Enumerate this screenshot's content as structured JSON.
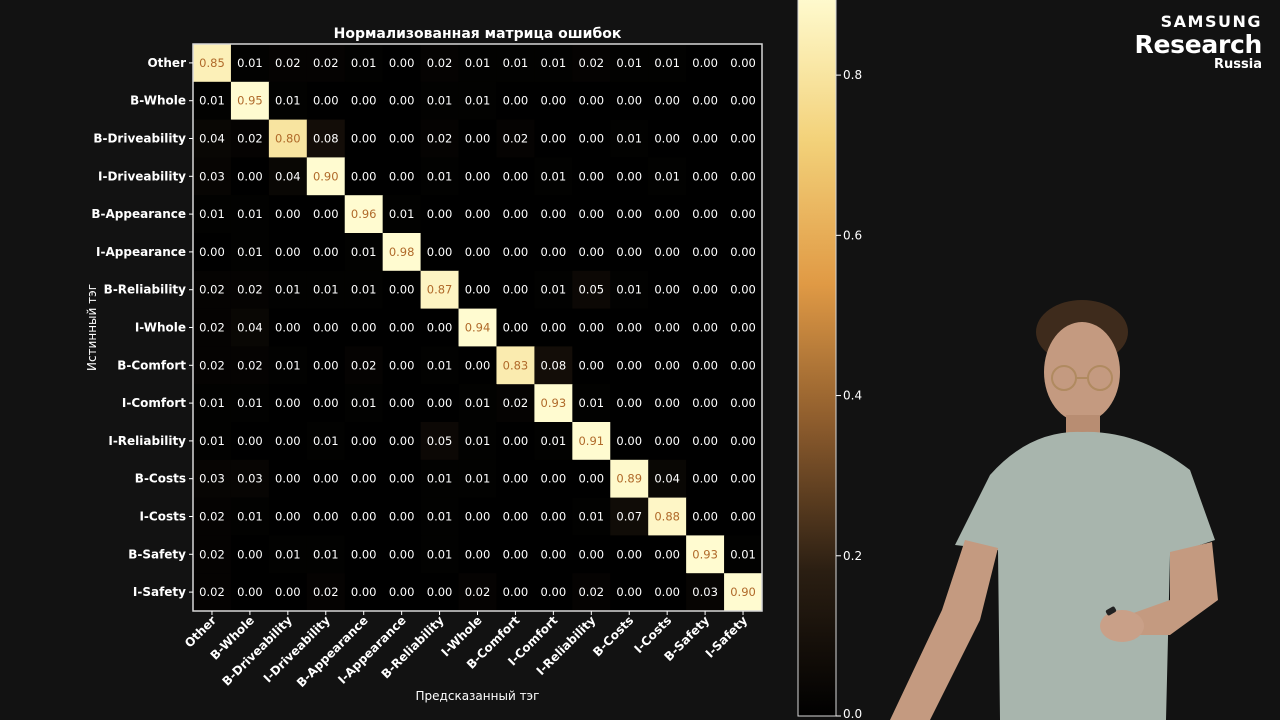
{
  "brand": {
    "line1": "SAMSUNG",
    "line2": "Research",
    "line3": "Russia"
  },
  "colors": {
    "background": "#121212",
    "text": "#ffffff",
    "frame": "#d8d8d8",
    "colormap": [
      "#000000",
      "#2a1e12",
      "#8a5a2c",
      "#e09a45",
      "#f3d27a",
      "#fffbd0"
    ]
  },
  "chart_data": {
    "type": "heatmap",
    "title": "Нормализованная матрица ошибок",
    "xlabel": "Предсказанный тэг",
    "ylabel": "Истинный тэг",
    "labels": [
      "Other",
      "B-Whole",
      "B-Driveability",
      "I-Driveability",
      "B-Appearance",
      "I-Appearance",
      "B-Reliability",
      "I-Whole",
      "B-Comfort",
      "I-Comfort",
      "I-Reliability",
      "B-Costs",
      "I-Costs",
      "B-Safety",
      "I-Safety"
    ],
    "values": [
      [
        "0.85",
        "0.01",
        "0.02",
        "0.02",
        "0.01",
        "0.00",
        "0.02",
        "0.01",
        "0.01",
        "0.01",
        "0.02",
        "0.01",
        "0.01",
        "0.00",
        "0.00"
      ],
      [
        "0.01",
        "0.95",
        "0.01",
        "0.00",
        "0.00",
        "0.00",
        "0.01",
        "0.01",
        "0.00",
        "0.00",
        "0.00",
        "0.00",
        "0.00",
        "0.00",
        "0.00"
      ],
      [
        "0.04",
        "0.02",
        "0.80",
        "0.08",
        "0.00",
        "0.00",
        "0.02",
        "0.00",
        "0.02",
        "0.00",
        "0.00",
        "0.01",
        "0.00",
        "0.00",
        "0.00"
      ],
      [
        "0.03",
        "0.00",
        "0.04",
        "0.90",
        "0.00",
        "0.00",
        "0.01",
        "0.00",
        "0.00",
        "0.01",
        "0.00",
        "0.00",
        "0.01",
        "0.00",
        "0.00"
      ],
      [
        "0.01",
        "0.01",
        "0.00",
        "0.00",
        "0.96",
        "0.01",
        "0.00",
        "0.00",
        "0.00",
        "0.00",
        "0.00",
        "0.00",
        "0.00",
        "0.00",
        "0.00"
      ],
      [
        "0.00",
        "0.01",
        "0.00",
        "0.00",
        "0.01",
        "0.98",
        "0.00",
        "0.00",
        "0.00",
        "0.00",
        "0.00",
        "0.00",
        "0.00",
        "0.00",
        "0.00"
      ],
      [
        "0.02",
        "0.02",
        "0.01",
        "0.01",
        "0.01",
        "0.00",
        "0.87",
        "0.00",
        "0.00",
        "0.01",
        "0.05",
        "0.01",
        "0.00",
        "0.00",
        "0.00"
      ],
      [
        "0.02",
        "0.04",
        "0.00",
        "0.00",
        "0.00",
        "0.00",
        "0.00",
        "0.94",
        "0.00",
        "0.00",
        "0.00",
        "0.00",
        "0.00",
        "0.00",
        "0.00"
      ],
      [
        "0.02",
        "0.02",
        "0.01",
        "0.00",
        "0.02",
        "0.00",
        "0.01",
        "0.00",
        "0.83",
        "0.08",
        "0.00",
        "0.00",
        "0.00",
        "0.00",
        "0.00"
      ],
      [
        "0.01",
        "0.01",
        "0.00",
        "0.00",
        "0.01",
        "0.00",
        "0.00",
        "0.01",
        "0.02",
        "0.93",
        "0.01",
        "0.00",
        "0.00",
        "0.00",
        "0.00"
      ],
      [
        "0.01",
        "0.00",
        "0.00",
        "0.01",
        "0.00",
        "0.00",
        "0.05",
        "0.01",
        "0.00",
        "0.01",
        "0.91",
        "0.00",
        "0.00",
        "0.00",
        "0.00"
      ],
      [
        "0.03",
        "0.03",
        "0.00",
        "0.00",
        "0.00",
        "0.00",
        "0.01",
        "0.01",
        "0.00",
        "0.00",
        "0.00",
        "0.89",
        "0.04",
        "0.00",
        "0.00"
      ],
      [
        "0.02",
        "0.01",
        "0.00",
        "0.00",
        "0.00",
        "0.00",
        "0.01",
        "0.00",
        "0.00",
        "0.00",
        "0.01",
        "0.07",
        "0.88",
        "0.00",
        "0.00"
      ],
      [
        "0.02",
        "0.00",
        "0.01",
        "0.01",
        "0.00",
        "0.00",
        "0.01",
        "0.00",
        "0.00",
        "0.00",
        "0.00",
        "0.00",
        "0.00",
        "0.93",
        "0.01"
      ],
      [
        "0.02",
        "0.00",
        "0.00",
        "0.02",
        "0.00",
        "0.00",
        "0.00",
        "0.02",
        "0.00",
        "0.00",
        "0.02",
        "0.00",
        "0.00",
        "0.03",
        "0.90"
      ]
    ],
    "colorbar": {
      "ticks": [
        "0.0",
        "0.2",
        "0.4",
        "0.6",
        "0.8"
      ],
      "range": [
        0,
        0.9
      ]
    },
    "grid": false
  }
}
